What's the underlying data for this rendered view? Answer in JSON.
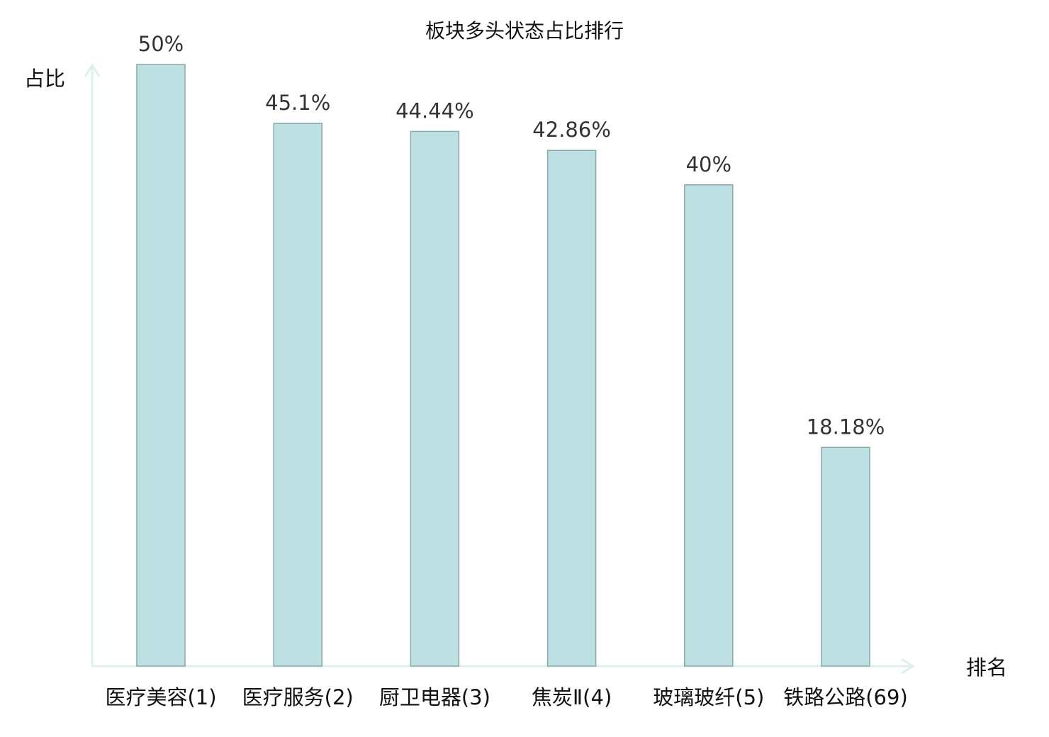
{
  "chart_data": {
    "type": "bar",
    "title": "板块多头状态占比排行",
    "ylabel": "占比",
    "xlabel": "排名",
    "categories": [
      "医疗美容(1)",
      "医疗服务(2)",
      "厨卫电器(3)",
      "焦炭Ⅱ(4)",
      "玻璃玻纤(5)",
      "铁路公路(69)"
    ],
    "values": [
      50,
      45.1,
      44.44,
      42.86,
      40,
      18.18
    ],
    "value_labels": [
      "50%",
      "45.1%",
      "44.44%",
      "42.86%",
      "40%",
      "18.18%"
    ],
    "highlight_index": 5,
    "ylim": [
      0,
      50
    ],
    "grid": false,
    "colors": {
      "bar_fill": "#bde0e3",
      "bar_stroke": "#8aa9aa",
      "axis": "#dcf0ee",
      "highlight_label": "#e8141b",
      "label": "#111111"
    }
  }
}
